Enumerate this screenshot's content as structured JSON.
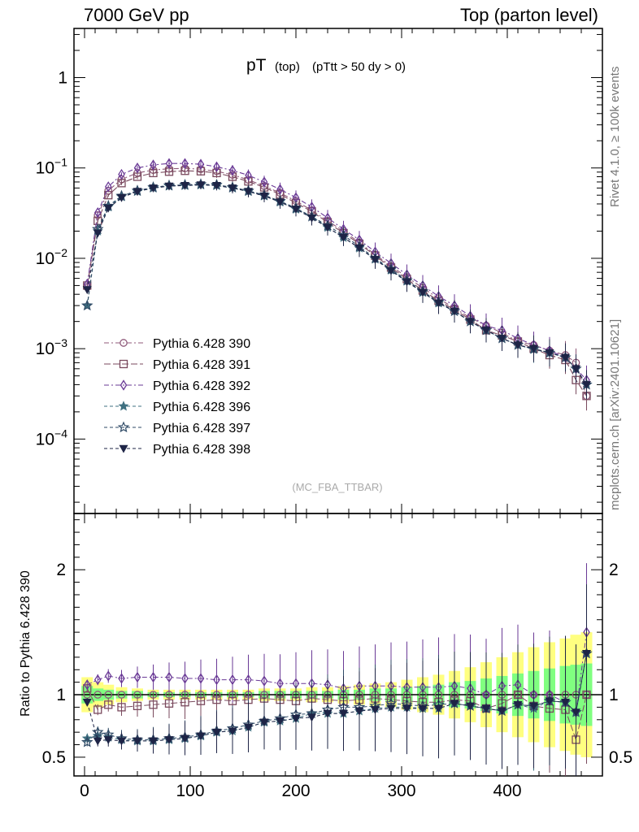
{
  "header": {
    "left": "7000 GeV pp",
    "right": "Top (parton level)"
  },
  "side_labels": {
    "rivet": "Rivet 4.1.0, ≥ 100k events",
    "mcplots": "mcplots.cern.ch [arXiv:2401.10621]"
  },
  "colors": {
    "band_yellow": "#ffff80",
    "band_green": "#80ff80",
    "s390": "#8f5a7a",
    "s391": "#7a4a5e",
    "s392": "#6a3a96",
    "s396": "#3f7080",
    "s397": "#2f4a66",
    "s398": "#1e2446"
  },
  "chart_data": {
    "type": "line",
    "title": "pT (top) (pTtt > 50 dy > 0)",
    "title_main": "pT",
    "title_sub": "(top)",
    "title_cut": "(pTtt > 50 dy > 0)",
    "watermark": "(MC_FBA_TTBAR)",
    "xlabel": "",
    "ylabel_main": "",
    "ylabel_ratio": "Ratio to Pythia 6.428 390",
    "xlim": [
      -10,
      490
    ],
    "ylim_main_log": [
      1.5e-05,
      3.5
    ],
    "ylim_ratio": [
      0.35,
      2.45
    ],
    "x_ticks": [
      "0",
      "100",
      "200",
      "300",
      "400"
    ],
    "y_ticks_main": [
      "1",
      "10^-1",
      "10^-2",
      "10^-3",
      "10^-4"
    ],
    "y_ticks_ratio": [
      "2",
      "1",
      "0.5"
    ],
    "x": [
      2.5,
      12.5,
      22.5,
      35,
      50,
      65,
      80,
      95,
      110,
      125,
      140,
      155,
      170,
      185,
      200,
      215,
      230,
      245,
      260,
      275,
      290,
      305,
      320,
      335,
      350,
      365,
      380,
      395,
      410,
      425,
      440,
      455,
      465,
      475
    ],
    "series": [
      {
        "name": "Pythia 6.428 390",
        "marker": "circle",
        "dash": "6,3,2,3",
        "values": [
          0.0048,
          0.03,
          0.056,
          0.075,
          0.088,
          0.095,
          0.098,
          0.099,
          0.097,
          0.092,
          0.084,
          0.074,
          0.063,
          0.053,
          0.043,
          0.034,
          0.026,
          0.02,
          0.015,
          0.011,
          0.0082,
          0.0062,
          0.0047,
          0.0036,
          0.0028,
          0.0022,
          0.0018,
          0.0015,
          0.0012,
          0.0011,
          0.00095,
          0.00085,
          0.0007,
          0.0003
        ]
      },
      {
        "name": "Pythia 6.428 391",
        "marker": "square",
        "dash": "8,3",
        "values": [
          0.005,
          0.026,
          0.05,
          0.068,
          0.08,
          0.088,
          0.091,
          0.093,
          0.092,
          0.088,
          0.08,
          0.071,
          0.061,
          0.051,
          0.041,
          0.033,
          0.025,
          0.019,
          0.0145,
          0.0107,
          0.0079,
          0.0059,
          0.0044,
          0.0034,
          0.0027,
          0.0021,
          0.0016,
          0.0014,
          0.0012,
          0.001,
          0.00085,
          0.00075,
          0.00045,
          0.0003
        ]
      },
      {
        "name": "Pythia 6.428 392",
        "marker": "diamond",
        "dash": "6,3,2,3",
        "values": [
          0.0052,
          0.032,
          0.062,
          0.085,
          0.1,
          0.108,
          0.112,
          0.112,
          0.11,
          0.103,
          0.094,
          0.083,
          0.07,
          0.058,
          0.047,
          0.037,
          0.028,
          0.021,
          0.016,
          0.0118,
          0.0088,
          0.0066,
          0.005,
          0.0038,
          0.003,
          0.0023,
          0.0018,
          0.0016,
          0.0013,
          0.0011,
          0.00095,
          0.0008,
          0.0006,
          0.00045
        ]
      },
      {
        "name": "Pythia 6.428 396",
        "marker": "star",
        "dash": "4,3",
        "values": [
          0.003,
          0.02,
          0.037,
          0.048,
          0.055,
          0.06,
          0.063,
          0.064,
          0.065,
          0.064,
          0.06,
          0.055,
          0.049,
          0.042,
          0.035,
          0.029,
          0.022,
          0.017,
          0.013,
          0.0098,
          0.0074,
          0.0056,
          0.0042,
          0.0032,
          0.0026,
          0.002,
          0.0016,
          0.0013,
          0.0011,
          0.00098,
          0.0009,
          0.0008,
          0.0006,
          0.0004
        ]
      },
      {
        "name": "Pythia 6.428 397",
        "marker": "star-open",
        "dash": "4,3",
        "values": [
          0.003,
          0.021,
          0.038,
          0.049,
          0.056,
          0.061,
          0.064,
          0.065,
          0.066,
          0.065,
          0.061,
          0.056,
          0.05,
          0.043,
          0.036,
          0.029,
          0.023,
          0.018,
          0.0135,
          0.01,
          0.0076,
          0.0057,
          0.0043,
          0.0033,
          0.0026,
          0.002,
          0.0016,
          0.0013,
          0.0011,
          0.001,
          0.0009,
          0.0008,
          0.0006,
          0.0004
        ]
      },
      {
        "name": "Pythia 6.428 398",
        "marker": "triangle-down",
        "dash": "4,3",
        "values": [
          0.0045,
          0.019,
          0.036,
          0.047,
          0.055,
          0.06,
          0.063,
          0.064,
          0.065,
          0.064,
          0.06,
          0.055,
          0.049,
          0.042,
          0.035,
          0.028,
          0.022,
          0.017,
          0.013,
          0.0097,
          0.0073,
          0.0055,
          0.0042,
          0.0032,
          0.0026,
          0.002,
          0.0016,
          0.0013,
          0.0011,
          0.001,
          0.0009,
          0.0008,
          0.0006,
          0.0004
        ]
      }
    ],
    "ratio_series": [
      {
        "name": "Pythia 6.428 391",
        "values": [
          1.05,
          0.88,
          0.92,
          0.9,
          0.91,
          0.92,
          0.93,
          0.94,
          0.95,
          0.96,
          0.95,
          0.96,
          0.97,
          0.96,
          0.95,
          0.97,
          0.96,
          0.95,
          0.96,
          0.97,
          0.96,
          0.95,
          0.94,
          0.94,
          0.96,
          0.95,
          0.89,
          0.93,
          1.0,
          0.91,
          0.89,
          0.88,
          0.64,
          1.0
        ]
      },
      {
        "name": "Pythia 6.428 392",
        "values": [
          1.08,
          1.12,
          1.15,
          1.13,
          1.14,
          1.14,
          1.14,
          1.13,
          1.13,
          1.12,
          1.12,
          1.12,
          1.11,
          1.09,
          1.09,
          1.09,
          1.08,
          1.05,
          1.07,
          1.07,
          1.07,
          1.06,
          1.06,
          1.06,
          1.07,
          1.05,
          1.0,
          1.07,
          1.08,
          1.0,
          1.0,
          0.94,
          0.86,
          1.5
        ]
      },
      {
        "name": "Pythia 6.428 396",
        "values": [
          0.65,
          0.67,
          0.66,
          0.64,
          0.63,
          0.63,
          0.64,
          0.65,
          0.67,
          0.7,
          0.71,
          0.74,
          0.78,
          0.79,
          0.81,
          0.85,
          0.85,
          0.85,
          0.87,
          0.89,
          0.9,
          0.9,
          0.89,
          0.89,
          0.93,
          0.91,
          0.89,
          0.87,
          0.92,
          0.89,
          0.95,
          0.94,
          0.86,
          1.33
        ]
      },
      {
        "name": "Pythia 6.428 397",
        "values": [
          0.62,
          0.7,
          0.68,
          0.65,
          0.64,
          0.64,
          0.65,
          0.66,
          0.68,
          0.71,
          0.73,
          0.76,
          0.79,
          0.81,
          0.84,
          0.85,
          0.88,
          0.9,
          0.9,
          0.91,
          0.93,
          0.92,
          0.91,
          0.92,
          0.93,
          0.91,
          0.89,
          0.87,
          0.92,
          0.91,
          0.95,
          0.94,
          0.86,
          1.33
        ]
      },
      {
        "name": "Pythia 6.428 398",
        "values": [
          0.94,
          0.63,
          0.64,
          0.63,
          0.63,
          0.63,
          0.64,
          0.65,
          0.67,
          0.7,
          0.71,
          0.74,
          0.78,
          0.79,
          0.81,
          0.82,
          0.85,
          0.85,
          0.87,
          0.88,
          0.89,
          0.89,
          0.89,
          0.89,
          0.93,
          0.91,
          0.89,
          0.87,
          0.92,
          0.91,
          0.95,
          0.94,
          0.86,
          1.33
        ]
      }
    ],
    "ratio_band": {
      "yellow_half": [
        0.14,
        0.1,
        0.08,
        0.06,
        0.05,
        0.04,
        0.04,
        0.04,
        0.04,
        0.04,
        0.04,
        0.04,
        0.05,
        0.05,
        0.05,
        0.06,
        0.06,
        0.07,
        0.08,
        0.09,
        0.1,
        0.12,
        0.14,
        0.16,
        0.19,
        0.22,
        0.26,
        0.3,
        0.34,
        0.38,
        0.42,
        0.45,
        0.48,
        0.5
      ],
      "green_half": [
        0.07,
        0.05,
        0.04,
        0.03,
        0.03,
        0.02,
        0.02,
        0.02,
        0.02,
        0.02,
        0.02,
        0.02,
        0.03,
        0.03,
        0.03,
        0.03,
        0.03,
        0.04,
        0.04,
        0.05,
        0.05,
        0.06,
        0.07,
        0.08,
        0.1,
        0.11,
        0.13,
        0.15,
        0.17,
        0.19,
        0.21,
        0.23,
        0.24,
        0.25
      ]
    }
  }
}
